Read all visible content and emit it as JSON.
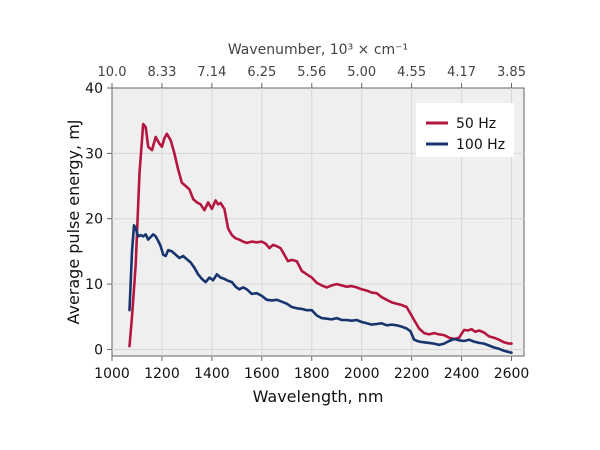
{
  "chart_data": {
    "type": "line",
    "xlabel": "Wavelength, nm",
    "ylabel": "Average pulse energy, mJ",
    "top_axis_title": "Wavenumber, 10³ × cm⁻¹",
    "xlim": [
      1000,
      2650
    ],
    "ylim": [
      -1,
      40
    ],
    "x_ticks": [
      1000,
      1200,
      1400,
      1600,
      1800,
      2000,
      2200,
      2400,
      2600
    ],
    "y_ticks": [
      0,
      10,
      20,
      30,
      40
    ],
    "top_ticks": [
      {
        "label": "10.0",
        "wavelength": 1000
      },
      {
        "label": "8.33",
        "wavelength": 1200
      },
      {
        "label": "7.14",
        "wavelength": 1400
      },
      {
        "label": "6.25",
        "wavelength": 1600
      },
      {
        "label": "5.56",
        "wavelength": 1800
      },
      {
        "label": "5.00",
        "wavelength": 2000
      },
      {
        "label": "4.55",
        "wavelength": 2200
      },
      {
        "label": "4.17",
        "wavelength": 2400
      },
      {
        "label": "3.85",
        "wavelength": 2600
      }
    ],
    "legend_position": "top-right",
    "series": [
      {
        "name": "50 Hz",
        "color": "#b5163f",
        "x": [
          1070,
          1080,
          1095,
          1110,
          1125,
          1135,
          1145,
          1160,
          1175,
          1190,
          1200,
          1210,
          1220,
          1235,
          1250,
          1265,
          1280,
          1295,
          1310,
          1325,
          1340,
          1355,
          1370,
          1385,
          1400,
          1415,
          1425,
          1435,
          1450,
          1465,
          1480,
          1495,
          1510,
          1525,
          1540,
          1560,
          1580,
          1600,
          1615,
          1630,
          1645,
          1660,
          1675,
          1690,
          1705,
          1720,
          1740,
          1760,
          1780,
          1800,
          1820,
          1840,
          1860,
          1880,
          1900,
          1920,
          1940,
          1960,
          1980,
          2000,
          2020,
          2040,
          2060,
          2080,
          2100,
          2120,
          2140,
          2160,
          2180,
          2195,
          2210,
          2230,
          2250,
          2270,
          2290,
          2310,
          2330,
          2350,
          2370,
          2390,
          2410,
          2425,
          2440,
          2455,
          2470,
          2490,
          2510,
          2530,
          2550,
          2570,
          2590,
          2600
        ],
        "y": [
          0.5,
          5,
          13,
          27,
          34.5,
          34,
          31,
          30.5,
          32.5,
          31.5,
          31,
          32.3,
          33,
          32,
          30,
          27.5,
          25.5,
          25,
          24.5,
          23,
          22.5,
          22.2,
          21.3,
          22.5,
          21.5,
          22.8,
          22.2,
          22.4,
          21.5,
          18.5,
          17.5,
          17,
          16.8,
          16.5,
          16.3,
          16.5,
          16.4,
          16.5,
          16.2,
          15.5,
          16,
          15.8,
          15.5,
          14.5,
          13.5,
          13.7,
          13.5,
          12,
          11.5,
          11,
          10.2,
          9.8,
          9.5,
          9.8,
          10,
          9.8,
          9.6,
          9.7,
          9.5,
          9.2,
          9,
          8.7,
          8.6,
          8,
          7.6,
          7.2,
          7,
          6.8,
          6.5,
          5.5,
          4.5,
          3.2,
          2.5,
          2.3,
          2.5,
          2.3,
          2.2,
          1.8,
          1.6,
          1.8,
          3,
          2.9,
          3.1,
          2.7,
          2.9,
          2.6,
          2,
          1.8,
          1.5,
          1.1,
          0.9,
          0.9
        ]
      },
      {
        "name": "100 Hz",
        "color": "#16356e",
        "x": [
          1070,
          1080,
          1088,
          1095,
          1105,
          1115,
          1125,
          1135,
          1145,
          1155,
          1165,
          1175,
          1185,
          1195,
          1205,
          1215,
          1225,
          1240,
          1255,
          1270,
          1285,
          1300,
          1315,
          1330,
          1345,
          1360,
          1375,
          1390,
          1405,
          1420,
          1435,
          1450,
          1465,
          1480,
          1495,
          1510,
          1525,
          1540,
          1560,
          1580,
          1600,
          1620,
          1640,
          1660,
          1680,
          1700,
          1720,
          1740,
          1760,
          1780,
          1800,
          1820,
          1840,
          1860,
          1880,
          1900,
          1920,
          1940,
          1960,
          1980,
          2000,
          2020,
          2040,
          2060,
          2080,
          2100,
          2120,
          2140,
          2160,
          2180,
          2195,
          2210,
          2230,
          2250,
          2270,
          2290,
          2310,
          2330,
          2350,
          2370,
          2390,
          2410,
          2430,
          2450,
          2470,
          2490,
          2510,
          2530,
          2550,
          2570,
          2590,
          2600
        ],
        "y": [
          6,
          15,
          19,
          18.5,
          17.3,
          17.5,
          17.3,
          17.6,
          16.8,
          17.2,
          17.6,
          17.3,
          16.6,
          15.8,
          14.5,
          14.3,
          15.2,
          15,
          14.5,
          14,
          14.3,
          13.8,
          13.3,
          12.5,
          11.5,
          10.8,
          10.3,
          11,
          10.6,
          11.5,
          11,
          10.8,
          10.5,
          10.3,
          9.6,
          9.2,
          9.5,
          9.2,
          8.5,
          8.6,
          8.2,
          7.6,
          7.5,
          7.6,
          7.3,
          7,
          6.5,
          6.3,
          6.2,
          6,
          6,
          5.2,
          4.8,
          4.7,
          4.6,
          4.8,
          4.5,
          4.5,
          4.4,
          4.5,
          4.2,
          4,
          3.8,
          3.9,
          4,
          3.7,
          3.8,
          3.7,
          3.5,
          3.2,
          2.8,
          1.5,
          1.2,
          1.1,
          1,
          0.9,
          0.7,
          0.9,
          1.3,
          1.6,
          1.4,
          1.3,
          1.5,
          1.2,
          1,
          0.9,
          0.6,
          0.3,
          0.1,
          -0.2,
          -0.4,
          -0.5
        ]
      }
    ]
  }
}
